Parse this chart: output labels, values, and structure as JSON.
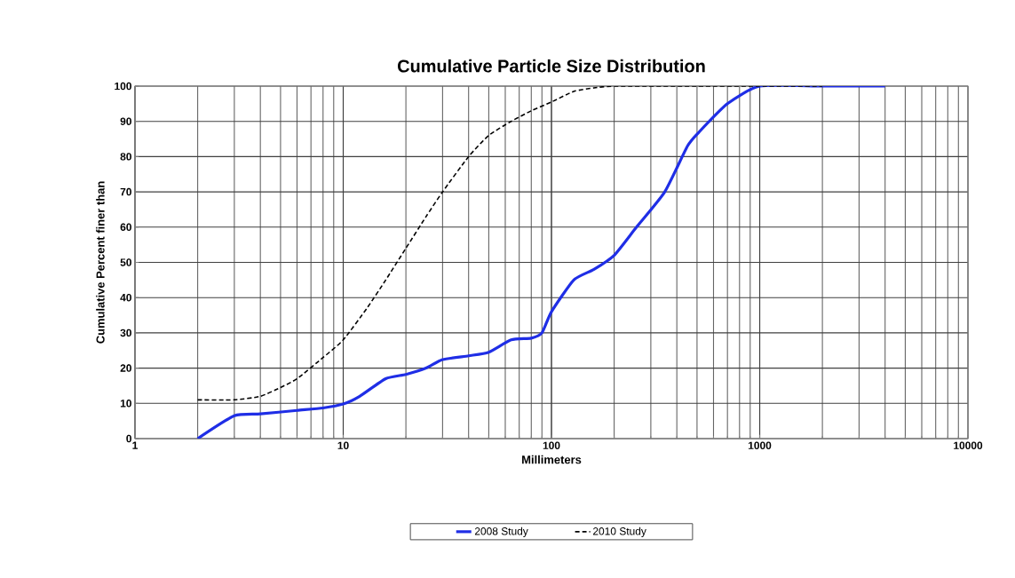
{
  "chart_data": {
    "type": "line",
    "title": "Cumulative Particle Size Distribution",
    "xlabel": "Millimeters",
    "ylabel": "Cumulative Percent finer than",
    "log": "x",
    "xlim": [
      1,
      10000
    ],
    "xticks": [
      1,
      10,
      100,
      1000,
      10000
    ],
    "ylim": [
      0,
      100
    ],
    "yticks": [
      0,
      10,
      20,
      30,
      40,
      50,
      60,
      70,
      80,
      90,
      100
    ],
    "grid": true,
    "legend": "bottom",
    "marker": "none",
    "series": [
      {
        "name": "2008 Study",
        "color": "#1f2ee6",
        "line_style": "solid",
        "x": [
          2,
          3,
          4,
          6,
          8,
          10,
          12,
          16,
          20,
          25,
          30,
          40,
          50,
          64,
          80,
          90,
          100,
          128,
          160,
          200,
          256,
          350,
          450,
          512,
          700,
          1000,
          2000,
          4000
        ],
        "values": [
          0,
          6.5,
          7,
          8,
          8.7,
          9.8,
          12,
          17,
          18.2,
          20,
          22.4,
          23.5,
          24.5,
          28,
          28.5,
          30,
          36,
          45,
          48,
          52,
          60,
          70,
          83,
          87,
          95,
          100,
          100,
          100
        ]
      },
      {
        "name": "2010 Study",
        "color": "#000000",
        "line_style": "dashed",
        "x": [
          2,
          3,
          4,
          5,
          6,
          8,
          10,
          13,
          16,
          20,
          25,
          30,
          40,
          50,
          64,
          80,
          100,
          128,
          160,
          200,
          500,
          1000,
          2000
        ],
        "values": [
          11,
          11,
          12,
          14.5,
          17,
          23,
          28,
          37,
          45,
          54,
          63,
          70,
          80,
          86,
          90,
          93,
          95.5,
          98.5,
          99.5,
          100,
          100,
          100,
          100
        ]
      }
    ]
  }
}
